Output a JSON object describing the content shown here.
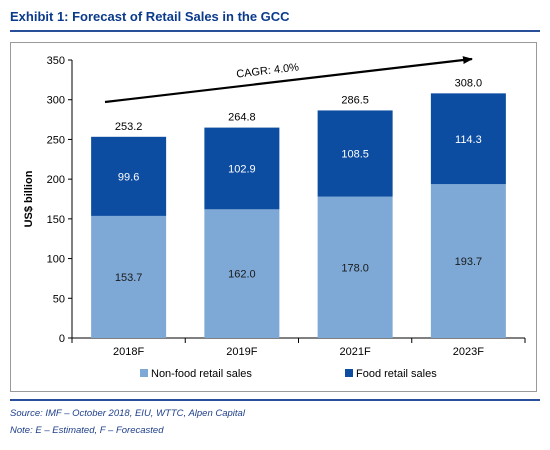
{
  "header": {
    "title": "Exhibit 1:  Forecast of Retail Sales in the GCC"
  },
  "footer": {
    "source": "Source:  IMF – October 2018, EIU, WTTC, Alpen Capital",
    "note": "Note: E – Estimated, F – Forecasted"
  },
  "colors": {
    "non_food": "#7ea9d6",
    "food": "#0d4da1",
    "frame": "#2a4f9a"
  },
  "chart_data": {
    "type": "bar",
    "stacked": true,
    "categories": [
      "2018F",
      "2019F",
      "2021F",
      "2023F"
    ],
    "series": [
      {
        "name": "Non-food retail sales",
        "values": [
          153.7,
          162.0,
          178.0,
          193.7
        ],
        "labels": [
          "153.7",
          "162.0",
          "178.0",
          "193.7"
        ]
      },
      {
        "name": "Food retail sales",
        "values": [
          99.6,
          102.9,
          108.5,
          114.3
        ],
        "labels": [
          "99.6",
          "102.9",
          "108.5",
          "114.3"
        ]
      }
    ],
    "totals": [
      "253.2",
      "264.8",
      "286.5",
      "308.0"
    ],
    "ylabel": "US$ billion",
    "xlabel": "",
    "ylim": [
      0,
      350
    ],
    "yticks": [
      0,
      50,
      100,
      150,
      200,
      250,
      300,
      350
    ],
    "grid": false,
    "legend": "bottom",
    "annotation": "CAGR: 4.0%"
  }
}
